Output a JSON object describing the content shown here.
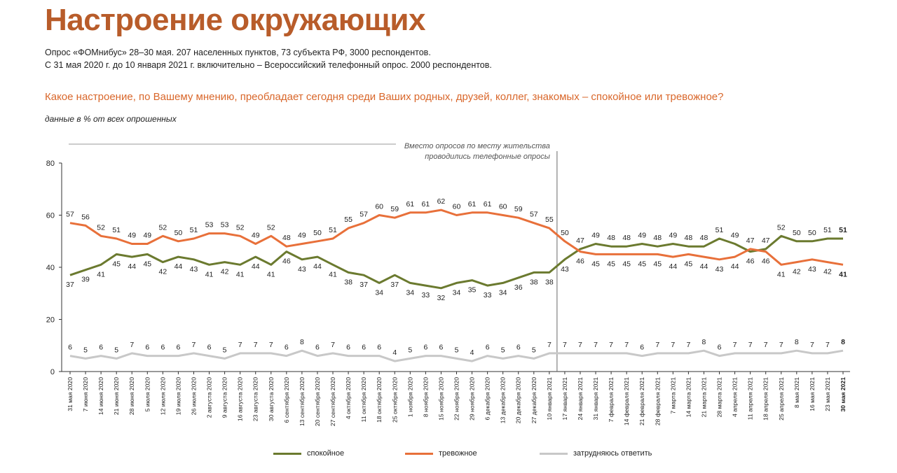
{
  "header": {
    "title": "Настроение окружающих",
    "subtitle1": "Опрос «ФОМнибус» 28–30 мая. 207 населенных пунктов, 73 субъекта РФ, 3000 респондентов.",
    "subtitle2": "С 31 мая 2020 г. до 10 января 2021 г. включительно – Всероссийский телефонный опрос. 2000 респондентов.",
    "question": "Какое настроение, по Вашему мнению, преобладает сегодня среди Ваших родных, друзей, коллег, знакомых – спокойное или тревожное?",
    "units": "данные в % от всех опрошенных"
  },
  "chart_data": {
    "type": "line",
    "annotation": [
      "Вместо опросов по месту жительства",
      "проводились телефонные опросы"
    ],
    "ylim": [
      0,
      80
    ],
    "yticks": [
      0,
      20,
      40,
      60,
      80
    ],
    "grid": false,
    "legend_position": "bottom",
    "categories": [
      "31 мая 2020",
      "7 июня 2020",
      "14 июня 2020",
      "21 июня 2020",
      "28 июня 2020",
      "5 июля 2020",
      "12 июля 2020",
      "19 июля 2020",
      "26 июля 2020",
      "2 августа 2020",
      "9 августа 2020",
      "16 августа 2020",
      "23 августа 2020",
      "30 августа 2020",
      "6 сентября 2020",
      "13 сентября 2020",
      "20 сентября 2020",
      "27 сентября 2020",
      "4 октября 2020",
      "11 октября 2020",
      "18 октября 2020",
      "25 октября 2020",
      "1 ноября 2020",
      "8 ноября 2020",
      "15 ноября 2020",
      "22 ноября 2020",
      "29 ноября 2020",
      "6 декабря 2020",
      "13 декабря 2020",
      "20 декабря 2020",
      "27 декабря 2020",
      "10 января 2021",
      "17 января 2021",
      "24 января 2021",
      "31 января 2021",
      "7 февраля 2021",
      "14 февраля 2021",
      "21 февраля 2021",
      "28 февраля 2021",
      "7 марта 2021",
      "14 марта 2021",
      "21 марта 2021",
      "28 марта 2021",
      "4 апреля 2021",
      "11 апреля 2021",
      "18 апреля 2021",
      "25 апреля 2021",
      "8 мая 2021",
      "16 мая 2021",
      "23 мая 2021",
      "30 мая 2021"
    ],
    "series": [
      {
        "name": "спокойное",
        "color": "#6b7a2f",
        "values": [
          37,
          39,
          41,
          45,
          44,
          45,
          42,
          44,
          43,
          41,
          42,
          41,
          44,
          41,
          46,
          43,
          44,
          41,
          38,
          37,
          34,
          37,
          34,
          33,
          32,
          34,
          35,
          33,
          34,
          36,
          38,
          38,
          43,
          47,
          49,
          48,
          48,
          49,
          48,
          49,
          48,
          48,
          51,
          49,
          46,
          47,
          52,
          50,
          50,
          51,
          51
        ]
      },
      {
        "name": "тревожное",
        "color": "#e8703a",
        "values": [
          57,
          56,
          52,
          51,
          49,
          49,
          52,
          50,
          51,
          53,
          53,
          52,
          49,
          52,
          48,
          49,
          50,
          51,
          55,
          57,
          60,
          59,
          61,
          61,
          62,
          60,
          61,
          61,
          60,
          59,
          57,
          55,
          50,
          46,
          45,
          45,
          45,
          45,
          45,
          44,
          45,
          44,
          43,
          44,
          47,
          46,
          41,
          42,
          43,
          42,
          41
        ]
      },
      {
        "name": "затрудняюсь ответить",
        "color": "#c8c8c8",
        "values": [
          6,
          5,
          6,
          5,
          7,
          6,
          6,
          6,
          7,
          6,
          5,
          7,
          7,
          7,
          6,
          8,
          6,
          7,
          6,
          6,
          6,
          4,
          5,
          6,
          6,
          5,
          4,
          6,
          5,
          6,
          5,
          7,
          7,
          7,
          7,
          7,
          7,
          6,
          7,
          7,
          7,
          8,
          6,
          7,
          7,
          7,
          7,
          8,
          7,
          7,
          8
        ]
      }
    ]
  }
}
